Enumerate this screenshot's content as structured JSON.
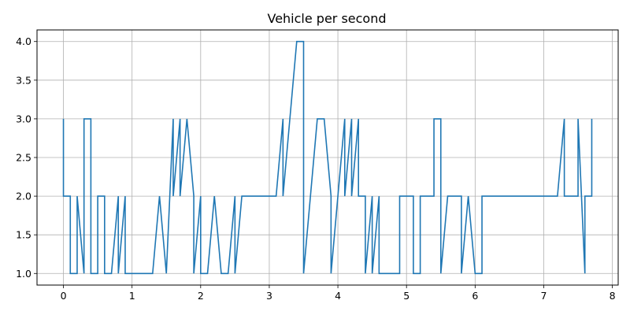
{
  "chart_data": {
    "type": "line",
    "title": "Vehicle per second",
    "xlabel": "",
    "ylabel": "",
    "xlim": [
      -0.385,
      8.085
    ],
    "ylim": [
      0.85,
      4.15
    ],
    "grid": true,
    "x_ticks": [
      0,
      1,
      2,
      3,
      4,
      5,
      6,
      7,
      8
    ],
    "x_tick_labels": [
      "0",
      "1",
      "2",
      "3",
      "4",
      "5",
      "6",
      "7",
      "8"
    ],
    "y_ticks": [
      1.0,
      1.5,
      2.0,
      2.5,
      3.0,
      3.5,
      4.0
    ],
    "y_tick_labels": [
      "1.0",
      "1.5",
      "2.0",
      "2.5",
      "3.0",
      "3.5",
      "4.0"
    ],
    "line_color": "#1f77b4",
    "series": [
      {
        "x": [
          0.0,
          0.0,
          0.1,
          0.1,
          0.2,
          0.2,
          0.3,
          0.3,
          0.4,
          0.4,
          0.5,
          0.5,
          0.6,
          0.6,
          0.7,
          0.8,
          0.8,
          0.9,
          0.9,
          1.0,
          1.1,
          1.2,
          1.3,
          1.4,
          1.5,
          1.6,
          1.6,
          1.7,
          1.7,
          1.8,
          1.9,
          1.9,
          2.0,
          2.0,
          2.1,
          2.2,
          2.3,
          2.4,
          2.5,
          2.5,
          2.6,
          3.1,
          3.2,
          3.2,
          3.3,
          3.4,
          3.5,
          3.5,
          3.7,
          3.8,
          3.9,
          3.9,
          4.0,
          4.1,
          4.1,
          4.2,
          4.2,
          4.3,
          4.3,
          4.4,
          4.4,
          4.5,
          4.5,
          4.6,
          4.6,
          4.9,
          4.9,
          5.1,
          5.1,
          5.2,
          5.2,
          5.4,
          5.4,
          5.5,
          5.5,
          5.6,
          5.8,
          5.8,
          5.9,
          6.0,
          6.1,
          6.1,
          7.2,
          7.3,
          7.3,
          7.5,
          7.5,
          7.6,
          7.6,
          7.7,
          7.7
        ],
        "y": [
          3,
          2,
          2,
          1,
          1,
          2,
          1,
          3,
          3,
          1,
          1,
          2,
          2,
          1,
          1,
          2,
          1,
          2,
          1,
          1,
          1,
          1,
          1,
          2,
          1,
          3,
          2,
          3,
          2,
          3,
          2,
          1,
          2,
          1,
          1,
          2,
          1,
          1,
          2,
          1,
          2,
          2,
          3,
          2,
          3,
          4,
          4,
          1,
          3,
          3,
          2,
          1,
          2,
          3,
          2,
          3,
          2,
          3,
          2,
          2,
          1,
          2,
          1,
          2,
          1,
          1,
          2,
          2,
          1,
          1,
          2,
          2,
          3,
          3,
          1,
          2,
          2,
          1,
          2,
          1,
          1,
          2,
          2,
          3,
          2,
          2,
          3,
          1,
          2,
          2,
          3
        ]
      }
    ]
  }
}
